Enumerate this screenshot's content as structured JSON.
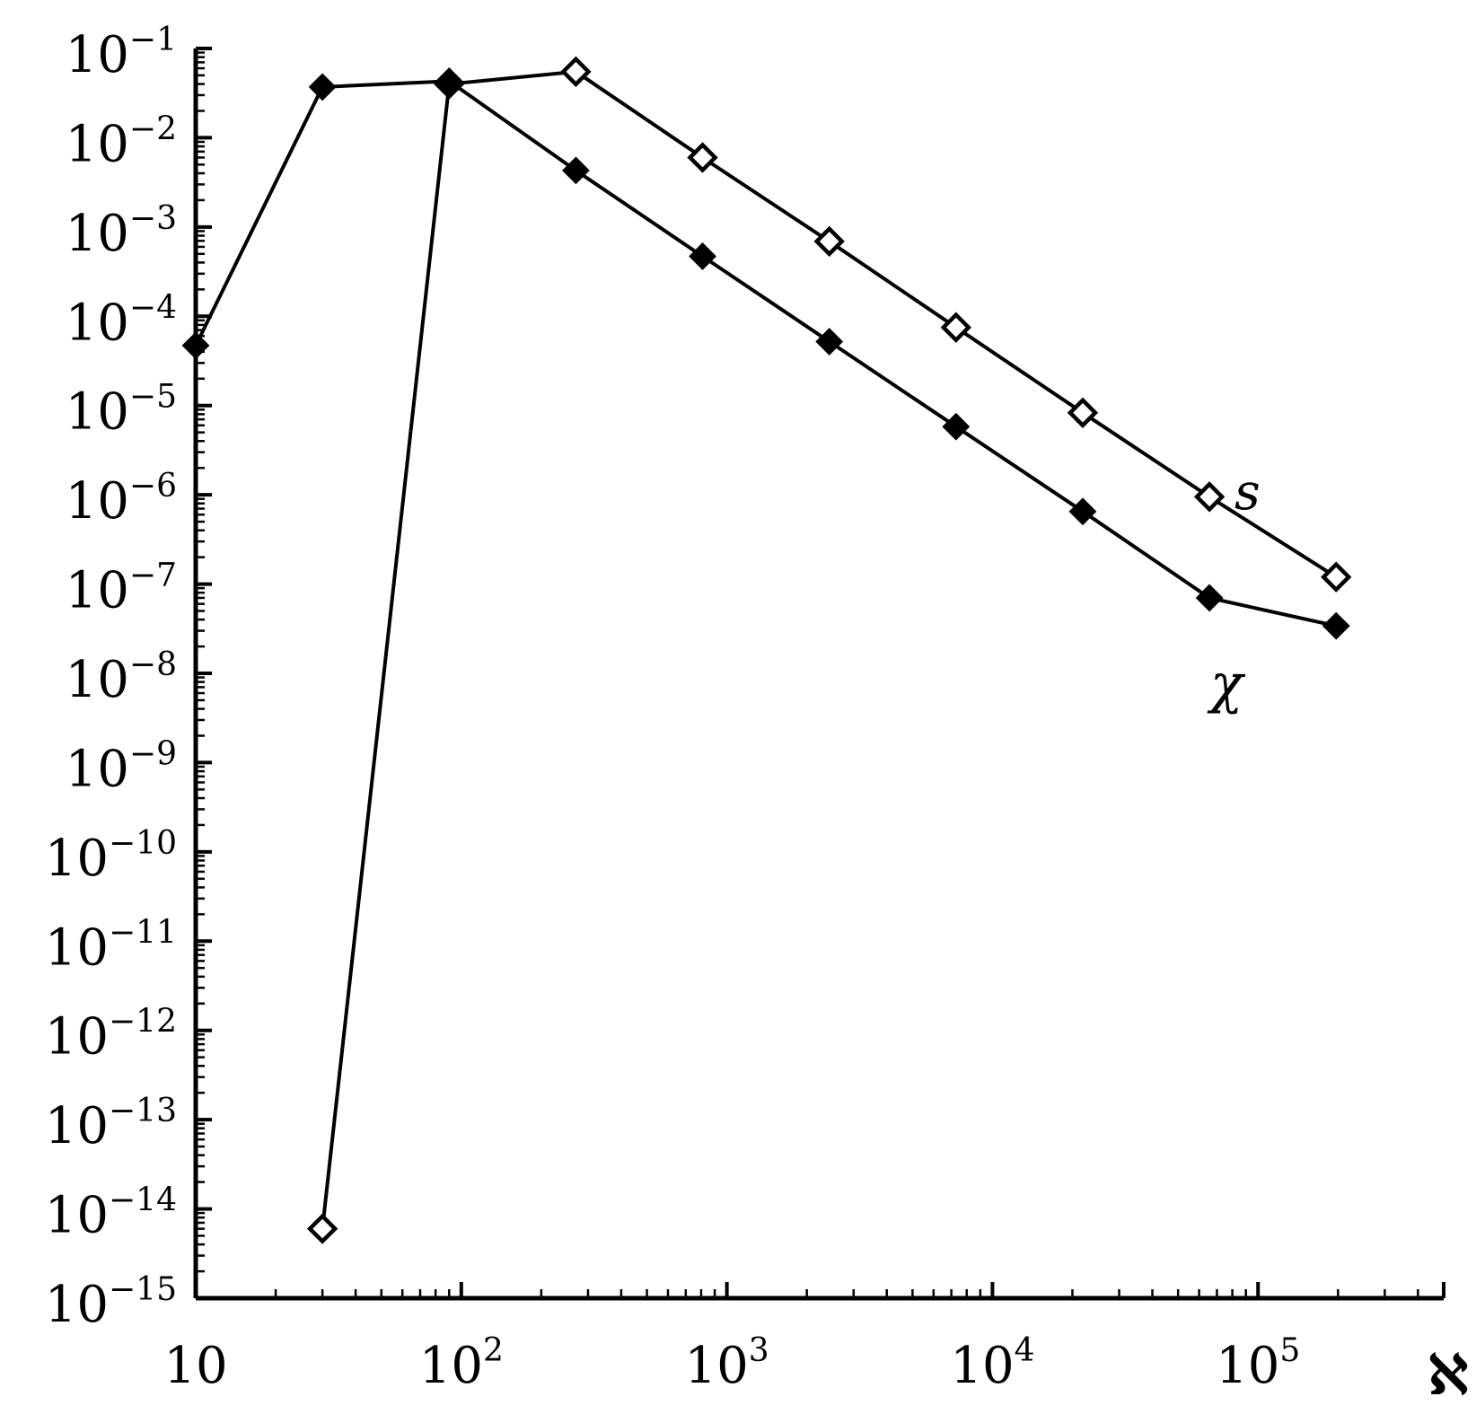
{
  "chart_data": {
    "type": "line",
    "title": "",
    "xlabel": "ℵ",
    "ylabel": "",
    "x_scale": "log",
    "y_scale": "log",
    "xlim": [
      10,
      500000
    ],
    "ylim": [
      1e-15,
      0.1
    ],
    "grid": false,
    "x_ticks": [
      {
        "value": 10,
        "base": "10",
        "exp": ""
      },
      {
        "value": 100,
        "base": "10",
        "exp": "2"
      },
      {
        "value": 1000,
        "base": "10",
        "exp": "3"
      },
      {
        "value": 10000,
        "base": "10",
        "exp": "4"
      },
      {
        "value": 100000,
        "base": "10",
        "exp": "5"
      }
    ],
    "y_ticks": [
      {
        "value": 0.1,
        "base": "10",
        "exp": "−1"
      },
      {
        "value": 0.01,
        "base": "10",
        "exp": "−2"
      },
      {
        "value": 0.001,
        "base": "10",
        "exp": "−3"
      },
      {
        "value": 0.0001,
        "base": "10",
        "exp": "−4"
      },
      {
        "value": 1e-05,
        "base": "10",
        "exp": "−5"
      },
      {
        "value": 1e-06,
        "base": "10",
        "exp": "−6"
      },
      {
        "value": 1e-07,
        "base": "10",
        "exp": "−7"
      },
      {
        "value": 1e-08,
        "base": "10",
        "exp": "−8"
      },
      {
        "value": 1e-09,
        "base": "10",
        "exp": "−9"
      },
      {
        "value": 1e-10,
        "base": "10",
        "exp": "−10"
      },
      {
        "value": 1e-11,
        "base": "10",
        "exp": "−11"
      },
      {
        "value": 1e-12,
        "base": "10",
        "exp": "−12"
      },
      {
        "value": 1e-13,
        "base": "10",
        "exp": "−13"
      },
      {
        "value": 1e-14,
        "base": "10",
        "exp": "−14"
      },
      {
        "value": 1e-15,
        "base": "10",
        "exp": "−15"
      }
    ],
    "series": [
      {
        "name": "s",
        "marker": "open-diamond",
        "color": "#000000",
        "x": [
          30,
          90,
          270,
          810,
          2430,
          7290,
          21870,
          65610,
          196830
        ],
        "y": [
          6e-15,
          0.04,
          0.055,
          0.006,
          0.00069,
          7.5e-05,
          8.3e-06,
          9.5e-07,
          1.2e-07
        ]
      },
      {
        "name": "χ",
        "marker": "filled-diamond",
        "color": "#000000",
        "x": [
          10,
          30,
          90,
          270,
          810,
          2430,
          7290,
          21870,
          65610,
          196830
        ],
        "y": [
          4.7e-05,
          0.037,
          0.043,
          0.0043,
          0.00047,
          5.2e-05,
          5.8e-06,
          6.5e-07,
          7e-08,
          3.4e-08
        ]
      }
    ]
  }
}
